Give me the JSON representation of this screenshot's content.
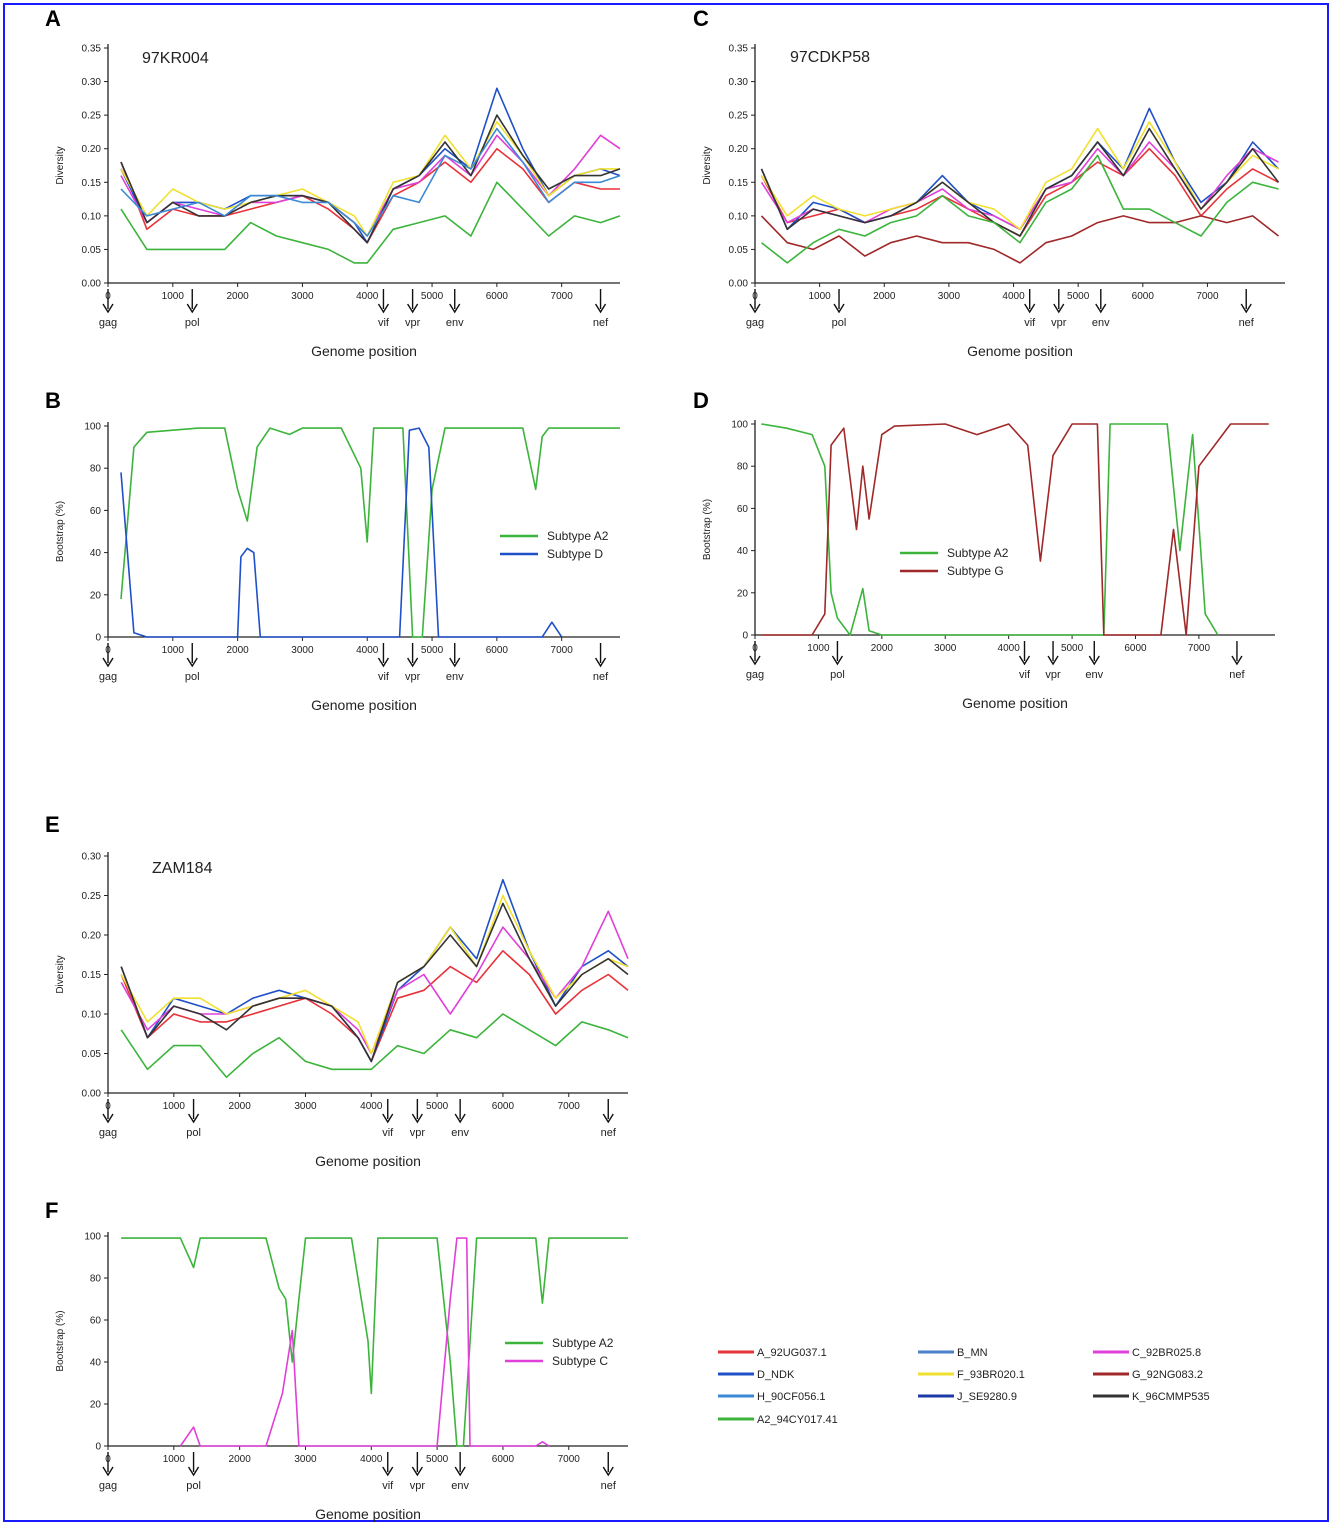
{
  "figure": {
    "border_color": "#1a1aff",
    "gene_labels": [
      "gag",
      "pol",
      "vif",
      "vpr",
      "env",
      "nef"
    ],
    "gene_positions": [
      0,
      1300,
      4250,
      4700,
      5350,
      7600
    ],
    "x_ticks": [
      0,
      1000,
      2000,
      3000,
      4000,
      5000,
      6000,
      7000
    ],
    "x_ticks_panel_c": [
      0,
      1000,
      2000,
      3000,
      4000,
      5000,
      6000,
      7000
    ],
    "x_ticks_panel_d": [
      0,
      1000,
      2000,
      3000,
      4000,
      5000,
      6000,
      7000
    ]
  },
  "legend": {
    "entries": [
      {
        "name": "A_92UG037.1",
        "color": "#e8323a"
      },
      {
        "name": "B_MN",
        "color": "#4a7fc9"
      },
      {
        "name": "C_92BR025.8",
        "color": "#e040d8"
      },
      {
        "name": "D_NDK",
        "color": "#2050c8"
      },
      {
        "name": "F_93BR020.1",
        "color": "#f0e030"
      },
      {
        "name": "G_92NG083.2",
        "color": "#a02828"
      },
      {
        "name": "H_90CF056.1",
        "color": "#3a8ad6"
      },
      {
        "name": "J_SE9280.9",
        "color": "#1e3aa8"
      },
      {
        "name": "K_96CMMP535",
        "color": "#333333"
      },
      {
        "name": "A2_94CY017.41",
        "color": "#3cb43c"
      }
    ]
  },
  "chart_data": [
    {
      "panel": "A",
      "type": "line",
      "title": "97KR004",
      "xlabel": "Genome position",
      "ylabel": "Diversity",
      "xlim": [
        0,
        7900
      ],
      "ylim": [
        0,
        0.35
      ],
      "y_ticks": [
        "0.00",
        "0.05",
        "0.10",
        "0.15",
        "0.20",
        "0.25",
        "0.30",
        "0.35"
      ],
      "x": [
        200,
        600,
        1000,
        1400,
        1800,
        2200,
        2600,
        3000,
        3400,
        3800,
        4000,
        4400,
        4800,
        5200,
        5600,
        6000,
        6400,
        6800,
        7200,
        7600,
        7900
      ],
      "series": [
        {
          "name": "A_92UG037.1",
          "color": "#e8323a",
          "values": [
            0.18,
            0.08,
            0.11,
            0.1,
            0.1,
            0.11,
            0.12,
            0.13,
            0.11,
            0.08,
            0.06,
            0.13,
            0.15,
            0.18,
            0.15,
            0.2,
            0.17,
            0.12,
            0.15,
            0.14,
            0.14
          ]
        },
        {
          "name": "D_NDK",
          "color": "#2050c8",
          "values": [
            0.17,
            0.09,
            0.12,
            0.12,
            0.11,
            0.13,
            0.13,
            0.13,
            0.12,
            0.09,
            0.06,
            0.14,
            0.16,
            0.2,
            0.17,
            0.29,
            0.2,
            0.13,
            0.16,
            0.17,
            0.16
          ]
        },
        {
          "name": "C_92BR025.8",
          "color": "#e040d8",
          "values": [
            0.16,
            0.09,
            0.12,
            0.11,
            0.1,
            0.12,
            0.12,
            0.13,
            0.12,
            0.09,
            0.07,
            0.14,
            0.15,
            0.19,
            0.16,
            0.22,
            0.18,
            0.13,
            0.17,
            0.22,
            0.2
          ]
        },
        {
          "name": "F_93BR020.1",
          "color": "#f0e030",
          "values": [
            0.17,
            0.1,
            0.14,
            0.12,
            0.11,
            0.12,
            0.13,
            0.14,
            0.12,
            0.1,
            0.07,
            0.15,
            0.16,
            0.22,
            0.17,
            0.24,
            0.19,
            0.13,
            0.16,
            0.17,
            0.17
          ]
        },
        {
          "name": "K_96CMMP535",
          "color": "#333333",
          "values": [
            0.18,
            0.09,
            0.12,
            0.1,
            0.1,
            0.12,
            0.13,
            0.13,
            0.12,
            0.08,
            0.06,
            0.14,
            0.16,
            0.21,
            0.16,
            0.25,
            0.19,
            0.14,
            0.16,
            0.16,
            0.17
          ]
        },
        {
          "name": "H_90CF056.1",
          "color": "#3a8ad6",
          "values": [
            0.14,
            0.1,
            0.11,
            0.12,
            0.1,
            0.13,
            0.13,
            0.12,
            0.12,
            0.09,
            0.07,
            0.13,
            0.12,
            0.19,
            0.17,
            0.23,
            0.18,
            0.12,
            0.15,
            0.15,
            0.16
          ]
        },
        {
          "name": "A2_94CY017.41",
          "color": "#3cb43c",
          "values": [
            0.11,
            0.05,
            0.05,
            0.05,
            0.05,
            0.09,
            0.07,
            0.06,
            0.05,
            0.03,
            0.03,
            0.08,
            0.09,
            0.1,
            0.07,
            0.15,
            0.11,
            0.07,
            0.1,
            0.09,
            0.1
          ]
        }
      ]
    },
    {
      "panel": "B",
      "type": "line",
      "xlabel": "Genome position",
      "ylabel": "Bootstrap (%)",
      "xlim": [
        0,
        7900
      ],
      "ylim": [
        0,
        100
      ],
      "y_ticks": [
        "0",
        "20",
        "40",
        "60",
        "80",
        "100"
      ],
      "series": [
        {
          "name": "Subtype A2",
          "color": "#3cb43c",
          "x": [
            200,
            400,
            600,
            1000,
            1400,
            1800,
            2000,
            2150,
            2300,
            2500,
            2800,
            3000,
            3600,
            3900,
            4000,
            4100,
            4550,
            4700,
            4850,
            5000,
            5200,
            5600,
            6000,
            6400,
            6600,
            6700,
            6800,
            7200,
            7900
          ],
          "values": [
            18,
            90,
            97,
            98,
            99,
            99,
            70,
            55,
            90,
            99,
            96,
            99,
            99,
            80,
            45,
            99,
            99,
            0,
            0,
            70,
            99,
            99,
            99,
            99,
            70,
            95,
            99,
            99,
            99
          ]
        },
        {
          "name": "Subtype D",
          "color": "#2050c8",
          "x": [
            200,
            400,
            600,
            2000,
            2050,
            2150,
            2250,
            2350,
            4500,
            4650,
            4800,
            4950,
            5100,
            6700,
            6850,
            7000
          ],
          "values": [
            78,
            2,
            0,
            0,
            38,
            42,
            40,
            0,
            0,
            98,
            99,
            90,
            0,
            0,
            7,
            0
          ]
        }
      ]
    },
    {
      "panel": "C",
      "type": "line",
      "title": "97CDKP58",
      "xlabel": "Genome position",
      "ylabel": "Diversity",
      "xlim": [
        0,
        8200
      ],
      "ylim": [
        0,
        0.35
      ],
      "y_ticks": [
        "0.00",
        "0.05",
        "0.10",
        "0.15",
        "0.20",
        "0.25",
        "0.30",
        "0.35"
      ],
      "x": [
        100,
        500,
        900,
        1300,
        1700,
        2100,
        2500,
        2900,
        3300,
        3700,
        4100,
        4500,
        4900,
        5300,
        5700,
        6100,
        6500,
        6900,
        7300,
        7700,
        8100
      ],
      "series": [
        {
          "name": "A_92UG037.1",
          "color": "#e8323a",
          "values": [
            0.16,
            0.09,
            0.1,
            0.11,
            0.09,
            0.1,
            0.11,
            0.13,
            0.11,
            0.09,
            0.07,
            0.13,
            0.15,
            0.18,
            0.16,
            0.2,
            0.16,
            0.1,
            0.14,
            0.17,
            0.15
          ]
        },
        {
          "name": "D_NDK",
          "color": "#2050c8",
          "values": [
            0.17,
            0.08,
            0.12,
            0.11,
            0.09,
            0.1,
            0.12,
            0.16,
            0.12,
            0.1,
            0.08,
            0.14,
            0.16,
            0.21,
            0.17,
            0.26,
            0.18,
            0.12,
            0.15,
            0.21,
            0.17
          ]
        },
        {
          "name": "C_92BR025.8",
          "color": "#e040d8",
          "values": [
            0.15,
            0.09,
            0.11,
            0.1,
            0.09,
            0.11,
            0.12,
            0.14,
            0.11,
            0.1,
            0.08,
            0.14,
            0.15,
            0.2,
            0.16,
            0.21,
            0.17,
            0.11,
            0.16,
            0.2,
            0.18
          ]
        },
        {
          "name": "F_93BR020.1",
          "color": "#f0e030",
          "values": [
            0.16,
            0.1,
            0.13,
            0.11,
            0.1,
            0.11,
            0.12,
            0.15,
            0.12,
            0.11,
            0.08,
            0.15,
            0.17,
            0.23,
            0.17,
            0.24,
            0.18,
            0.11,
            0.15,
            0.19,
            0.17
          ]
        },
        {
          "name": "K_96CMMP535",
          "color": "#333333",
          "values": [
            0.17,
            0.08,
            0.11,
            0.1,
            0.09,
            0.1,
            0.12,
            0.15,
            0.12,
            0.09,
            0.07,
            0.14,
            0.16,
            0.21,
            0.16,
            0.23,
            0.17,
            0.11,
            0.15,
            0.2,
            0.15
          ]
        },
        {
          "name": "G_92NG083.2",
          "color": "#a02828",
          "values": [
            0.1,
            0.06,
            0.05,
            0.07,
            0.04,
            0.06,
            0.07,
            0.06,
            0.06,
            0.05,
            0.03,
            0.06,
            0.07,
            0.09,
            0.1,
            0.09,
            0.09,
            0.1,
            0.09,
            0.1,
            0.07
          ]
        },
        {
          "name": "A2_94CY017.41",
          "color": "#3cb43c",
          "values": [
            0.06,
            0.03,
            0.06,
            0.08,
            0.07,
            0.09,
            0.1,
            0.13,
            0.1,
            0.09,
            0.06,
            0.12,
            0.14,
            0.19,
            0.11,
            0.11,
            0.09,
            0.07,
            0.12,
            0.15,
            0.14
          ]
        }
      ]
    },
    {
      "panel": "D",
      "type": "line",
      "xlabel": "Genome position",
      "ylabel": "Bootstrap (%)",
      "xlim": [
        0,
        8200
      ],
      "ylim": [
        0,
        100
      ],
      "y_ticks": [
        "0",
        "20",
        "40",
        "60",
        "80",
        "100"
      ],
      "series": [
        {
          "name": "Subtype A2",
          "color": "#3cb43c",
          "x": [
            100,
            500,
            900,
            1100,
            1200,
            1300,
            1500,
            1700,
            1800,
            2000,
            2200,
            5300,
            5500,
            5600,
            6500,
            6700,
            6900,
            7100,
            7300
          ],
          "values": [
            100,
            98,
            95,
            80,
            20,
            8,
            0,
            22,
            2,
            0,
            0,
            0,
            0,
            100,
            100,
            40,
            95,
            10,
            0
          ]
        },
        {
          "name": "Subtype G",
          "color": "#a02828",
          "x": [
            100,
            900,
            1100,
            1200,
            1400,
            1600,
            1700,
            1800,
            2000,
            2200,
            3000,
            3500,
            4000,
            4300,
            4500,
            4700,
            5000,
            5400,
            5500,
            5600,
            6400,
            6600,
            6800,
            7000,
            7500,
            8100
          ],
          "values": [
            0,
            0,
            10,
            90,
            98,
            50,
            80,
            55,
            95,
            99,
            100,
            95,
            100,
            90,
            35,
            85,
            100,
            100,
            0,
            0,
            0,
            50,
            0,
            80,
            100,
            100
          ]
        }
      ]
    },
    {
      "panel": "E",
      "type": "line",
      "title": "ZAM184",
      "xlabel": "Genome position",
      "ylabel": "Diversity",
      "xlim": [
        0,
        7900
      ],
      "ylim": [
        0,
        0.3
      ],
      "y_ticks": [
        "0.00",
        "0.05",
        "0.10",
        "0.15",
        "0.20",
        "0.25",
        "0.30"
      ],
      "x": [
        200,
        600,
        1000,
        1400,
        1800,
        2200,
        2600,
        3000,
        3400,
        3800,
        4000,
        4400,
        4800,
        5200,
        5600,
        6000,
        6400,
        6800,
        7200,
        7600,
        7900
      ],
      "series": [
        {
          "name": "A_92UG037.1",
          "color": "#e8323a",
          "values": [
            0.15,
            0.07,
            0.1,
            0.09,
            0.09,
            0.1,
            0.11,
            0.12,
            0.1,
            0.07,
            0.04,
            0.12,
            0.13,
            0.16,
            0.14,
            0.18,
            0.15,
            0.1,
            0.13,
            0.15,
            0.13
          ]
        },
        {
          "name": "D_NDK",
          "color": "#2050c8",
          "values": [
            0.16,
            0.07,
            0.12,
            0.11,
            0.1,
            0.12,
            0.13,
            0.12,
            0.11,
            0.07,
            0.04,
            0.13,
            0.16,
            0.21,
            0.17,
            0.27,
            0.18,
            0.11,
            0.16,
            0.18,
            0.16
          ]
        },
        {
          "name": "C_92BR025.8",
          "color": "#e040d8",
          "values": [
            0.14,
            0.08,
            0.11,
            0.1,
            0.1,
            0.11,
            0.12,
            0.12,
            0.11,
            0.08,
            0.05,
            0.13,
            0.15,
            0.1,
            0.15,
            0.21,
            0.17,
            0.12,
            0.16,
            0.23,
            0.17
          ]
        },
        {
          "name": "F_93BR020.1",
          "color": "#f0e030",
          "values": [
            0.15,
            0.09,
            0.12,
            0.12,
            0.1,
            0.11,
            0.12,
            0.13,
            0.11,
            0.09,
            0.05,
            0.14,
            0.16,
            0.21,
            0.16,
            0.25,
            0.18,
            0.12,
            0.15,
            0.17,
            0.16
          ]
        },
        {
          "name": "K_96CMMP535",
          "color": "#333333",
          "values": [
            0.16,
            0.07,
            0.11,
            0.1,
            0.08,
            0.11,
            0.12,
            0.12,
            0.11,
            0.07,
            0.04,
            0.14,
            0.16,
            0.2,
            0.16,
            0.24,
            0.17,
            0.11,
            0.15,
            0.17,
            0.15
          ]
        },
        {
          "name": "A2_94CY017.41",
          "color": "#3cb43c",
          "values": [
            0.08,
            0.03,
            0.06,
            0.06,
            0.02,
            0.05,
            0.07,
            0.04,
            0.03,
            0.03,
            0.03,
            0.06,
            0.05,
            0.08,
            0.07,
            0.1,
            0.08,
            0.06,
            0.09,
            0.08,
            0.07
          ]
        }
      ]
    },
    {
      "panel": "F",
      "type": "line",
      "xlabel": "Genome position",
      "ylabel": "Bootstrap (%)",
      "xlim": [
        0,
        7900
      ],
      "ylim": [
        0,
        100
      ],
      "y_ticks": [
        "0",
        "20",
        "40",
        "60",
        "80",
        "100"
      ],
      "series": [
        {
          "name": "Subtype A2",
          "color": "#3cb43c",
          "x": [
            200,
            1100,
            1300,
            1400,
            2400,
            2600,
            2700,
            2800,
            2900,
            3000,
            3700,
            3950,
            4000,
            4100,
            5000,
            5200,
            5300,
            5400,
            5600,
            6500,
            6600,
            6700,
            7900
          ],
          "values": [
            99,
            99,
            85,
            99,
            99,
            75,
            70,
            40,
            70,
            99,
            99,
            50,
            25,
            99,
            99,
            40,
            0,
            0,
            99,
            99,
            68,
            99,
            99
          ]
        },
        {
          "name": "Subtype C",
          "color": "#e040d8",
          "x": [
            1100,
            1300,
            1400,
            2400,
            2650,
            2800,
            2900,
            5000,
            5200,
            5300,
            5450,
            5500,
            6500,
            6600,
            6700
          ],
          "values": [
            0,
            9,
            0,
            0,
            25,
            55,
            0,
            0,
            70,
            99,
            99,
            0,
            0,
            2,
            0
          ]
        }
      ]
    }
  ]
}
